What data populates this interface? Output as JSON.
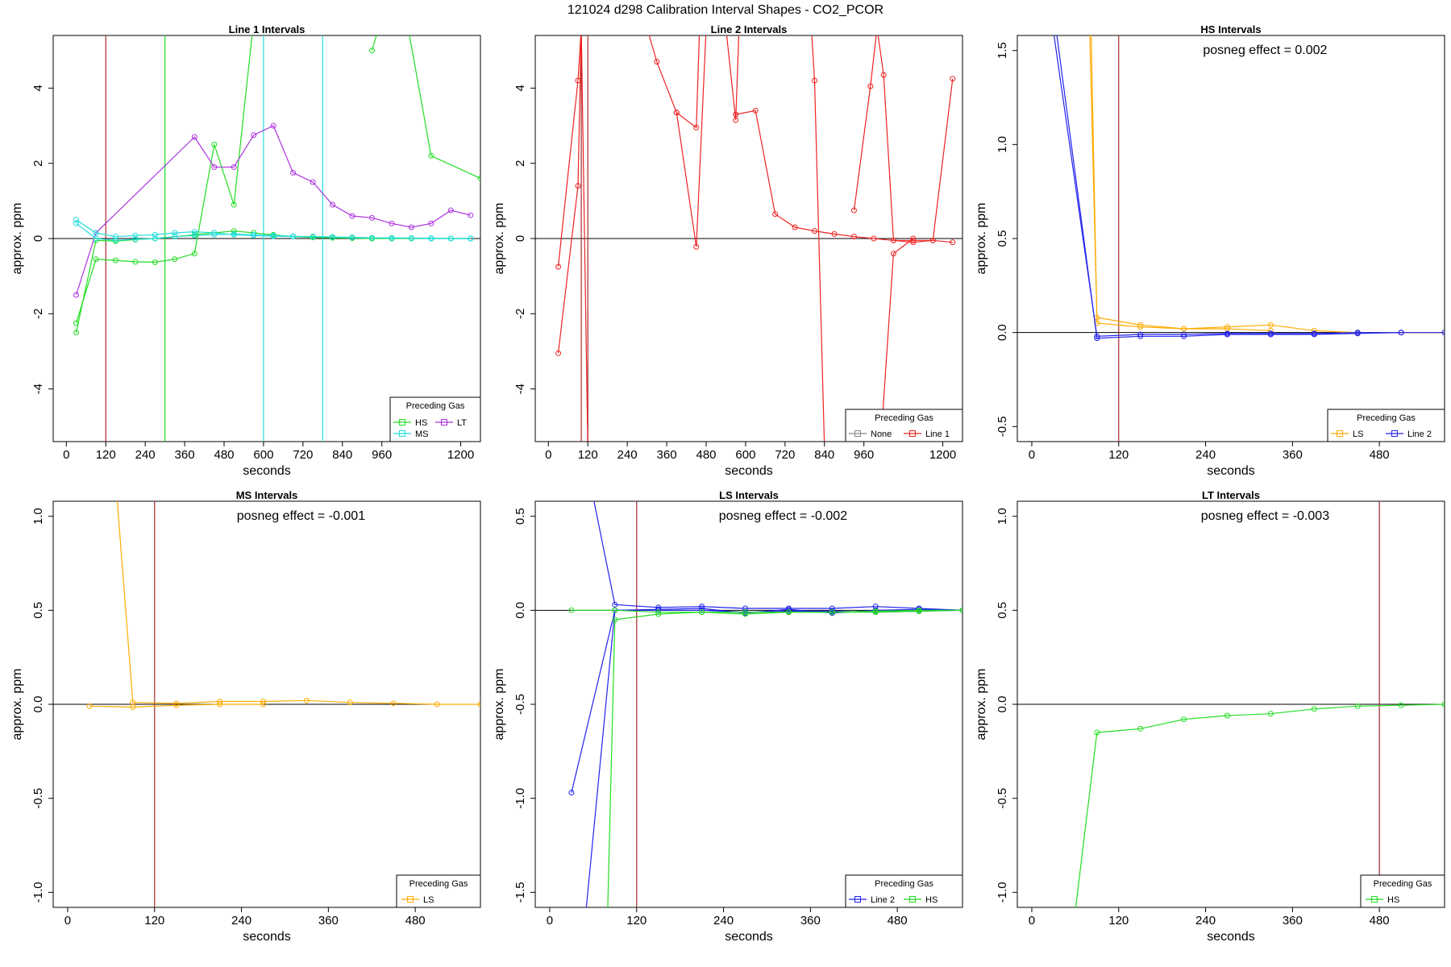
{
  "figure": {
    "title": "121024  d298   Calibration Interval Shapes - CO2_PCOR"
  },
  "colors": {
    "HS": "#22dd22",
    "MS": "#22dddd",
    "LT": "#aa33dd",
    "LS": "#ffaa00",
    "Line 1": "#ee2222",
    "Line 2": "#2222ee",
    "None": "#888888",
    "vline": "#a52a2a",
    "zero": "#000000"
  },
  "chart_data": [
    {
      "type": "line",
      "title": "Line 1 Intervals",
      "xlabel": "seconds",
      "ylabel": "approx. ppm",
      "xlim": [
        -40,
        1260
      ],
      "ylim": [
        -5.4,
        5.4
      ],
      "xticks": [
        0,
        120,
        240,
        360,
        480,
        600,
        720,
        840,
        960,
        1200
      ],
      "yticks": [
        -4,
        -2,
        0,
        2,
        4
      ],
      "annotation": "",
      "legend": {
        "title": "Preceding Gas",
        "position": "bottom-right",
        "entries": [
          "HS",
          "LT",
          "MS"
        ]
      },
      "vlines": [
        {
          "x": 120,
          "color": "vline"
        },
        {
          "x": 300,
          "color": "HS"
        },
        {
          "x": 600,
          "color": "MS"
        },
        {
          "x": 780,
          "color": "MS"
        }
      ],
      "series": [
        {
          "name": "HS",
          "color": "HS",
          "x": [
            30,
            90,
            150,
            210,
            270,
            330,
            390,
            450,
            510,
            570,
            630,
            690,
            750,
            810,
            870,
            930,
            990,
            1050,
            1110,
            1170,
            1230
          ],
          "y": [
            -2.5,
            -0.05,
            -0.07,
            -0.03,
            0.0,
            0.05,
            0.1,
            0.15,
            0.2,
            0.15,
            0.1,
            0.05,
            0.03,
            0.02,
            0.01,
            0.0,
            0.0,
            0.0,
            0.0,
            0.0,
            0.0
          ]
        },
        {
          "name": "HS",
          "color": "HS",
          "x": [
            30,
            90,
            150,
            210,
            270,
            330,
            390,
            450,
            510,
            570
          ],
          "y": [
            -2.25,
            -0.55,
            -0.58,
            -0.62,
            -0.63,
            -0.55,
            -0.4,
            2.5,
            0.9,
            5.8
          ]
        },
        {
          "name": "HS",
          "color": "HS",
          "x": [
            930,
            950,
            1040,
            1110,
            1260
          ],
          "y": [
            5.0,
            5.6,
            5.6,
            2.2,
            1.6
          ]
        },
        {
          "name": "LT",
          "color": "LT",
          "x": [
            30,
            90,
            390,
            450,
            510,
            570,
            630,
            690,
            750,
            810,
            870,
            930,
            990,
            1050,
            1110,
            1170,
            1230
          ],
          "y": [
            -1.5,
            0.15,
            2.7,
            1.9,
            1.9,
            2.75,
            3.0,
            1.75,
            1.5,
            0.9,
            0.6,
            0.55,
            0.4,
            0.3,
            0.4,
            0.75,
            0.62
          ]
        },
        {
          "name": "MS",
          "color": "MS",
          "x": [
            30,
            90,
            150,
            210,
            270,
            330,
            390,
            450,
            510,
            570,
            630,
            690,
            750,
            810,
            870,
            930,
            990,
            1050,
            1110,
            1170,
            1230
          ],
          "y": [
            0.5,
            0.15,
            0.05,
            0.08,
            0.1,
            0.15,
            0.18,
            0.15,
            0.1,
            0.08,
            0.06,
            0.05,
            0.05,
            0.04,
            0.03,
            0.02,
            0.02,
            0.01,
            0.01,
            0.0,
            0.0
          ]
        },
        {
          "name": "MS",
          "color": "MS",
          "x": [
            30,
            90,
            150,
            210,
            270,
            330,
            390,
            450,
            510,
            570,
            630,
            690,
            750,
            810,
            870,
            930,
            990,
            1050,
            1110,
            1170,
            1230
          ],
          "y": [
            0.4,
            0.0,
            -0.05,
            -0.02,
            0.0,
            0.05,
            0.08,
            0.1,
            0.12,
            0.1,
            0.08,
            0.06,
            0.05,
            0.04,
            0.03,
            0.02,
            0.01,
            0.01,
            0.0,
            0.0,
            0.0
          ]
        }
      ]
    },
    {
      "type": "line",
      "title": "Line 2 Intervals",
      "xlabel": "seconds",
      "ylabel": "approx. ppm",
      "xlim": [
        -40,
        1260
      ],
      "ylim": [
        -5.4,
        5.4
      ],
      "xticks": [
        0,
        120,
        240,
        360,
        480,
        600,
        720,
        840,
        960,
        1200
      ],
      "yticks": [
        -4,
        -2,
        0,
        2,
        4
      ],
      "annotation": "",
      "legend": {
        "title": "Preceding Gas",
        "position": "bottom-right",
        "entries": [
          "None",
          "Line 1"
        ]
      },
      "vlines": [
        {
          "x": 100,
          "color": "vline"
        },
        {
          "x": 120,
          "color": "vline"
        }
      ],
      "series": [
        {
          "name": "Line 1",
          "color": "Line 1",
          "x": [
            30,
            90,
            100,
            120
          ],
          "y": [
            -3.05,
            1.4,
            5.6,
            -5.6
          ]
        },
        {
          "name": "Line 1",
          "color": "Line 1",
          "x": [
            30,
            90,
            100
          ],
          "y": [
            -0.75,
            4.2,
            5.6
          ]
        },
        {
          "name": "Line 1",
          "color": "Line 1",
          "x": [
            300,
            330,
            390,
            450,
            460,
            480
          ],
          "y": [
            5.6,
            4.7,
            3.35,
            2.95,
            5.6,
            5.6
          ]
        },
        {
          "name": "Line 1",
          "color": "Line 1",
          "x": [
            390,
            450,
            480
          ],
          "y": [
            3.35,
            -0.22,
            5.6
          ]
        },
        {
          "name": "Line 1",
          "color": "Line 1",
          "x": [
            540,
            570,
            580
          ],
          "y": [
            5.6,
            3.15,
            5.6
          ]
        },
        {
          "name": "Line 1",
          "color": "Line 1",
          "x": [
            570,
            630,
            690,
            750,
            810,
            870,
            930,
            990,
            1050,
            1110,
            1170,
            1230
          ],
          "y": [
            3.3,
            3.4,
            0.65,
            0.3,
            0.2,
            0.12,
            0.05,
            0.0,
            -0.05,
            -0.1,
            -0.05,
            -0.1
          ]
        },
        {
          "name": "Line 1",
          "color": "Line 1",
          "x": [
            800,
            810,
            840
          ],
          "y": [
            5.6,
            4.2,
            -5.6
          ]
        },
        {
          "name": "Line 1",
          "color": "Line 1",
          "x": [
            930,
            980,
            1000,
            1020,
            1050,
            1110,
            1170,
            1230
          ],
          "y": [
            0.75,
            4.05,
            5.6,
            4.35,
            -0.05,
            -0.05,
            -0.05,
            4.25
          ]
        },
        {
          "name": "Line 1",
          "color": "Line 1",
          "x": [
            1010,
            1050,
            1110
          ],
          "y": [
            -5.6,
            -0.4,
            0.0
          ]
        }
      ]
    },
    {
      "type": "line",
      "title": "HS Intervals",
      "xlabel": "seconds",
      "ylabel": "approx. ppm",
      "xlim": [
        -20,
        570
      ],
      "ylim": [
        -0.58,
        1.58
      ],
      "xticks": [
        0,
        120,
        240,
        360,
        480
      ],
      "yticks": [
        -0.5,
        0.0,
        0.5,
        1.0,
        1.5
      ],
      "annotation": "posneg effect = 0.002",
      "legend": {
        "title": "Preceding Gas",
        "position": "bottom-right",
        "entries": [
          "LS",
          "Line 2"
        ]
      },
      "vlines": [
        {
          "x": 120,
          "color": "vline"
        }
      ],
      "series": [
        {
          "name": "LS",
          "color": "LS",
          "x": [
            80,
            90,
            150,
            210,
            270,
            330,
            390,
            450,
            510,
            570
          ],
          "y": [
            1.6,
            0.08,
            0.04,
            0.02,
            0.03,
            0.04,
            0.01,
            0.0,
            0.0,
            0.0
          ]
        },
        {
          "name": "LS",
          "color": "LS",
          "x": [
            82,
            90,
            150,
            210,
            270,
            330
          ],
          "y": [
            1.6,
            0.05,
            0.03,
            0.02,
            0.02,
            0.01
          ]
        },
        {
          "name": "Line 2",
          "color": "Line 2",
          "x": [
            30,
            90,
            150,
            210,
            270,
            330,
            390,
            450,
            510,
            570
          ],
          "y": [
            1.6,
            -0.02,
            -0.01,
            -0.01,
            -0.005,
            -0.005,
            -0.005,
            0.0,
            0.0,
            0.0
          ]
        },
        {
          "name": "Line 2",
          "color": "Line 2",
          "x": [
            34,
            90,
            150,
            210,
            270,
            330,
            390,
            450,
            510
          ],
          "y": [
            1.6,
            -0.03,
            -0.02,
            -0.02,
            -0.01,
            -0.01,
            -0.01,
            -0.005,
            0.0
          ]
        }
      ]
    },
    {
      "type": "line",
      "title": "MS Intervals",
      "xlabel": "seconds",
      "ylabel": "approx. ppm",
      "xlim": [
        -20,
        570
      ],
      "ylim": [
        -1.08,
        1.08
      ],
      "xticks": [
        0,
        120,
        240,
        360,
        480
      ],
      "yticks": [
        -1.0,
        -0.5,
        0.0,
        0.5,
        1.0
      ],
      "annotation": "posneg effect = -0.001",
      "legend": {
        "title": "Preceding Gas",
        "position": "bottom-right",
        "entries": [
          "LS"
        ]
      },
      "vlines": [
        {
          "x": 120,
          "color": "vline"
        }
      ],
      "series": [
        {
          "name": "LS",
          "color": "LS",
          "x": [
            68,
            90,
            150,
            210,
            270,
            330,
            390,
            450,
            510,
            570
          ],
          "y": [
            1.1,
            0.01,
            0.005,
            0.015,
            0.015,
            0.02,
            0.01,
            0.005,
            0.0,
            0.0
          ]
        },
        {
          "name": "LS",
          "color": "LS",
          "x": [
            30,
            90,
            150,
            210,
            270
          ],
          "y": [
            -0.01,
            -0.015,
            -0.005,
            0.0,
            0.0
          ]
        }
      ]
    },
    {
      "type": "line",
      "title": "LS Intervals",
      "xlabel": "seconds",
      "ylabel": "approx. ppm",
      "xlim": [
        -20,
        570
      ],
      "ylim": [
        -1.58,
        0.58
      ],
      "xticks": [
        0,
        120,
        240,
        360,
        480
      ],
      "yticks": [
        -1.5,
        -1.0,
        -0.5,
        0.0,
        0.5
      ],
      "annotation": "posneg effect = -0.002",
      "legend": {
        "title": "Preceding Gas",
        "position": "bottom-right",
        "entries": [
          "Line 2",
          "HS"
        ]
      },
      "vlines": [
        {
          "x": 120,
          "color": "vline"
        }
      ],
      "series": [
        {
          "name": "Line 2",
          "color": "Line 2",
          "x": [
            60,
            90,
            150,
            210,
            270,
            330,
            390,
            450,
            510,
            570
          ],
          "y": [
            0.6,
            0.03,
            0.015,
            0.02,
            0.01,
            0.01,
            0.01,
            0.02,
            0.01,
            0.0
          ]
        },
        {
          "name": "Line 2",
          "color": "Line 2",
          "x": [
            30,
            90,
            150,
            210,
            270,
            330,
            390,
            450,
            510,
            570
          ],
          "y": [
            -0.97,
            0.0,
            0.0,
            0.0,
            -0.01,
            -0.005,
            -0.005,
            -0.01,
            -0.005,
            0.0
          ]
        },
        {
          "name": "Line 2",
          "color": "Line 2",
          "x": [
            50,
            90,
            150,
            210,
            270,
            330,
            390,
            450,
            510,
            570
          ],
          "y": [
            -1.6,
            0.0,
            0.005,
            0.01,
            -0.015,
            0.005,
            -0.015,
            0.0,
            0.005,
            0.0
          ]
        },
        {
          "name": "HS",
          "color": "HS",
          "x": [
            30,
            90,
            150,
            210,
            270,
            330,
            390,
            450,
            510,
            570
          ],
          "y": [
            0.0,
            0.0,
            -0.01,
            -0.01,
            -0.01,
            -0.01,
            -0.01,
            -0.005,
            0.0,
            0.0
          ]
        },
        {
          "name": "HS",
          "color": "HS",
          "x": [
            80,
            90,
            150,
            210,
            270,
            330,
            390,
            450,
            510,
            570
          ],
          "y": [
            -1.6,
            -0.05,
            -0.02,
            -0.01,
            -0.02,
            -0.01,
            -0.01,
            -0.01,
            -0.005,
            0.0
          ]
        }
      ]
    },
    {
      "type": "line",
      "title": "LT Intervals",
      "xlabel": "seconds",
      "ylabel": "approx. ppm",
      "xlim": [
        -20,
        570
      ],
      "ylim": [
        -1.08,
        1.08
      ],
      "xticks": [
        0,
        120,
        240,
        360,
        480
      ],
      "yticks": [
        -1.0,
        -0.5,
        0.0,
        0.5,
        1.0
      ],
      "annotation": "posneg effect = -0.003",
      "legend": {
        "title": "Preceding Gas",
        "position": "bottom-right",
        "entries": [
          "HS"
        ]
      },
      "vlines": [
        {
          "x": 480,
          "color": "vline"
        }
      ],
      "series": [
        {
          "name": "HS",
          "color": "HS",
          "x": [
            60,
            90,
            150,
            210,
            270,
            330,
            390,
            450,
            510,
            570
          ],
          "y": [
            -1.1,
            -0.15,
            -0.13,
            -0.08,
            -0.06,
            -0.05,
            -0.025,
            -0.01,
            -0.005,
            0.0
          ]
        }
      ]
    }
  ]
}
